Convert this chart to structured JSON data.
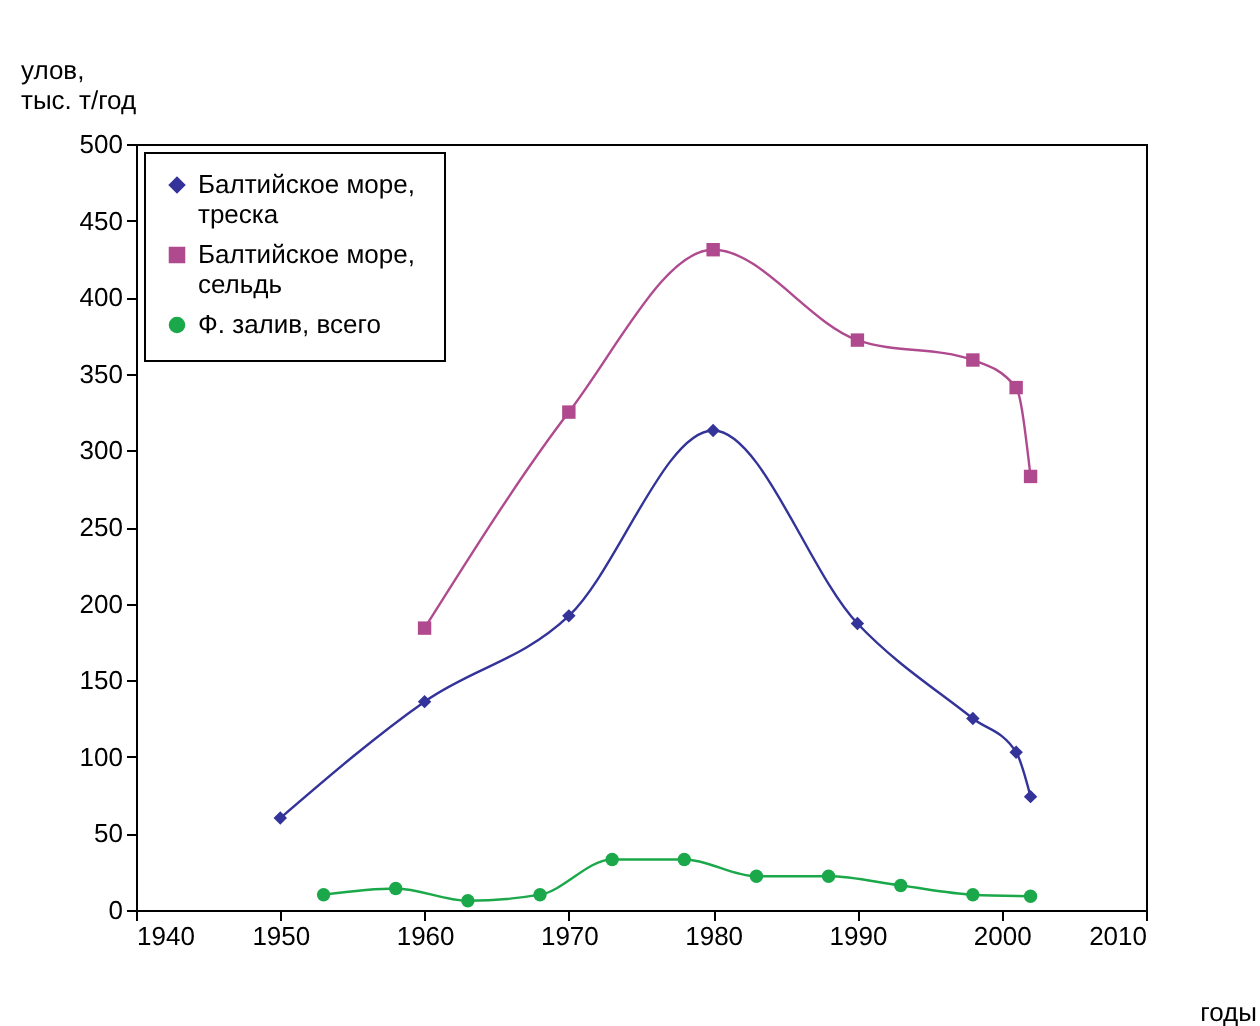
{
  "chart_data": {
    "type": "line",
    "ylabel": "улов,\nтыс. т/год",
    "xlabel": "годы",
    "xlim": [
      1940,
      2010
    ],
    "xticks": [
      1940,
      1950,
      1960,
      1970,
      1980,
      1990,
      2000,
      2010
    ],
    "ylim": [
      0,
      500
    ],
    "yticks": [
      0,
      50,
      100,
      150,
      200,
      250,
      300,
      350,
      400,
      450,
      500
    ],
    "grid": false,
    "legend": "top left",
    "series": [
      {
        "name": "Балтийское  море,\nтреска",
        "color": "#333399",
        "marker": "diamond",
        "x": [
          1950,
          1960,
          1970,
          1980,
          1990,
          1998,
          2001,
          2002
        ],
        "values": [
          60,
          136,
          192,
          313,
          187,
          125,
          103,
          74
        ]
      },
      {
        "name": "Балтийское море,\nсельдь",
        "color": "#b04a8e",
        "marker": "square",
        "x": [
          1960,
          1970,
          1980,
          1990,
          1998,
          2001,
          2002
        ],
        "values": [
          184,
          325,
          431,
          372,
          359,
          341,
          283
        ]
      },
      {
        "name": "Ф. залив, всего",
        "color": "#1aa84a",
        "marker": "circle",
        "x": [
          1953,
          1958,
          1963,
          1968,
          1973,
          1978,
          1983,
          1988,
          1993,
          1998,
          2002
        ],
        "values": [
          10,
          14,
          6,
          10,
          33,
          33,
          22,
          22,
          16,
          10,
          9
        ]
      }
    ]
  }
}
